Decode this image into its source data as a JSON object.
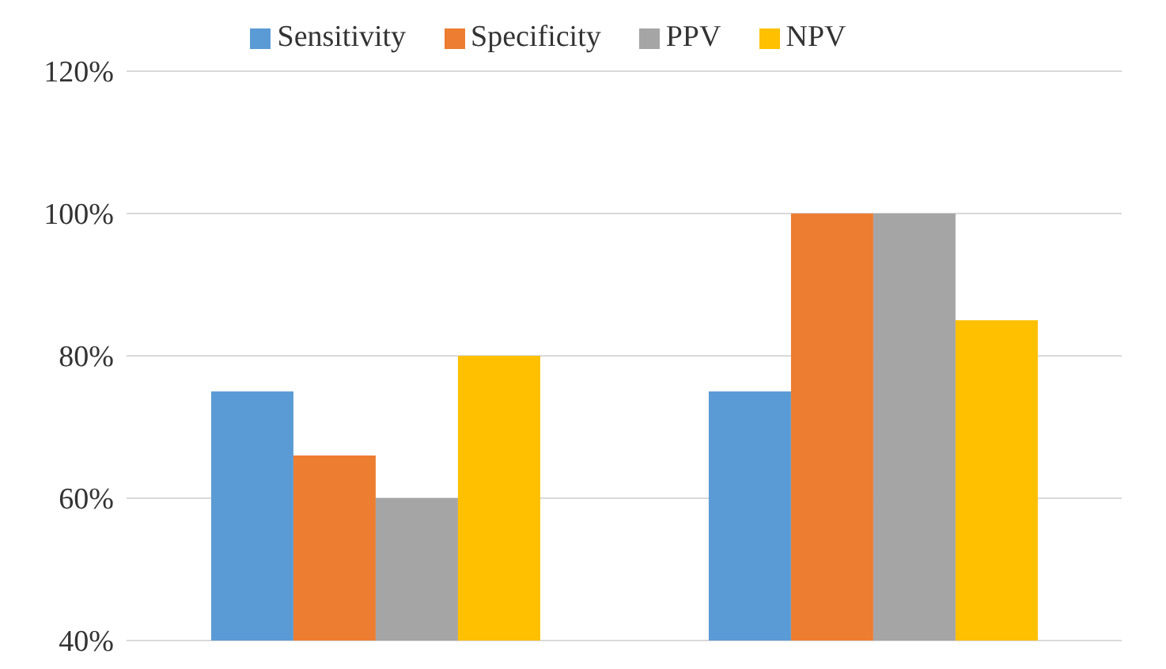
{
  "chart_data": {
    "type": "bar",
    "categories": [
      null,
      null
    ],
    "series": [
      {
        "name": "Sensitivity",
        "color": "#5b9bd5",
        "values": [
          75,
          75
        ]
      },
      {
        "name": "Specificity",
        "color": "#ed7d31",
        "values": [
          66,
          100
        ]
      },
      {
        "name": "PPV",
        "color": "#a5a5a5",
        "values": [
          60,
          100
        ]
      },
      {
        "name": "NPV",
        "color": "#ffc000",
        "values": [
          80,
          85
        ]
      }
    ],
    "ylim": [
      40,
      120
    ],
    "yticks": [
      {
        "value": 40,
        "label": "40%"
      },
      {
        "value": 60,
        "label": "60%"
      },
      {
        "value": 80,
        "label": "80%"
      },
      {
        "value": 100,
        "label": "100%"
      },
      {
        "value": 120,
        "label": "120%"
      }
    ],
    "grid": "y",
    "legend": "top"
  }
}
